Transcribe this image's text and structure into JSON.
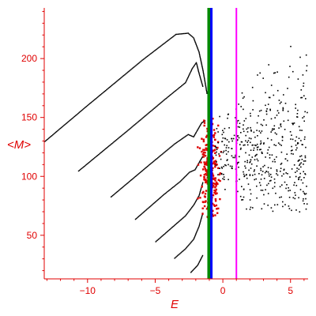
{
  "chart_data": {
    "type": "scatter",
    "xlabel": "E",
    "ylabel": "<M>",
    "xlim": [
      -13.2,
      6.3
    ],
    "ylim": [
      13,
      243
    ],
    "xticks": [
      -10,
      -5,
      0,
      5
    ],
    "xtick_labels": [
      "−10",
      "−5",
      "0",
      "5"
    ],
    "yticks": [
      50,
      100,
      150,
      200
    ],
    "ytick_labels": [
      "50",
      "100",
      "150",
      "200"
    ],
    "grid": false,
    "legend": "none",
    "axis_color": "#e00000",
    "vertical_lines": [
      {
        "x": -1.0,
        "color": "#008800"
      },
      {
        "x": -0.85,
        "color": "#0000ff"
      },
      {
        "x": 1.0,
        "color": "#ff00ff"
      }
    ],
    "curves": [
      {
        "color": "#000000",
        "points": [
          [
            -13.2,
            130
          ],
          [
            -10.0,
            161
          ],
          [
            -6.0,
            199
          ],
          [
            -3.5,
            221
          ],
          [
            -2.6,
            222
          ],
          [
            -2.2,
            218
          ],
          [
            -1.8,
            206
          ],
          [
            -1.5,
            190
          ],
          [
            -1.2,
            170
          ]
        ]
      },
      {
        "color": "#000000",
        "points": [
          [
            -10.7,
            105
          ],
          [
            -7.0,
            140
          ],
          [
            -4.3,
            166
          ],
          [
            -2.8,
            180
          ],
          [
            -2.3,
            192
          ],
          [
            -2.0,
            197
          ],
          [
            -1.8,
            188
          ],
          [
            -1.5,
            176
          ]
        ]
      },
      {
        "color": "#000000",
        "points": [
          [
            -8.3,
            83
          ],
          [
            -5.5,
            110
          ],
          [
            -3.6,
            128
          ],
          [
            -2.6,
            136
          ],
          [
            -2.2,
            134
          ],
          [
            -1.9,
            140
          ],
          [
            -1.6,
            146
          ],
          [
            -1.3,
            148
          ]
        ]
      },
      {
        "color": "#000000",
        "points": [
          [
            -6.5,
            64
          ],
          [
            -4.4,
            85
          ],
          [
            -3.2,
            96
          ],
          [
            -2.5,
            104
          ],
          [
            -2.1,
            106
          ],
          [
            -1.8,
            112
          ],
          [
            -1.5,
            118
          ]
        ]
      },
      {
        "color": "#000000",
        "points": [
          [
            -5.0,
            45
          ],
          [
            -3.7,
            58
          ],
          [
            -2.8,
            67
          ],
          [
            -2.2,
            76
          ],
          [
            -1.8,
            84
          ],
          [
            -1.5,
            96
          ]
        ]
      },
      {
        "color": "#000000",
        "points": [
          [
            -3.6,
            31
          ],
          [
            -2.8,
            39
          ],
          [
            -2.2,
            47
          ],
          [
            -1.8,
            58
          ],
          [
            -1.5,
            70
          ]
        ]
      },
      {
        "color": "#000000",
        "points": [
          [
            -2.4,
            19
          ],
          [
            -1.9,
            25
          ],
          [
            -1.5,
            34
          ]
        ]
      }
    ],
    "scatter_regions": [
      {
        "color": "#dd0000",
        "x_range": [
          -2.0,
          1.0
        ],
        "y_range": [
          60,
          150
        ],
        "center": [
          -1.0,
          105
        ],
        "count": 260
      },
      {
        "color": "#000000",
        "x_range": [
          -0.6,
          6.2
        ],
        "y_range": [
          70,
          245
        ],
        "center": [
          3.0,
          120
        ],
        "count": 520
      }
    ]
  }
}
